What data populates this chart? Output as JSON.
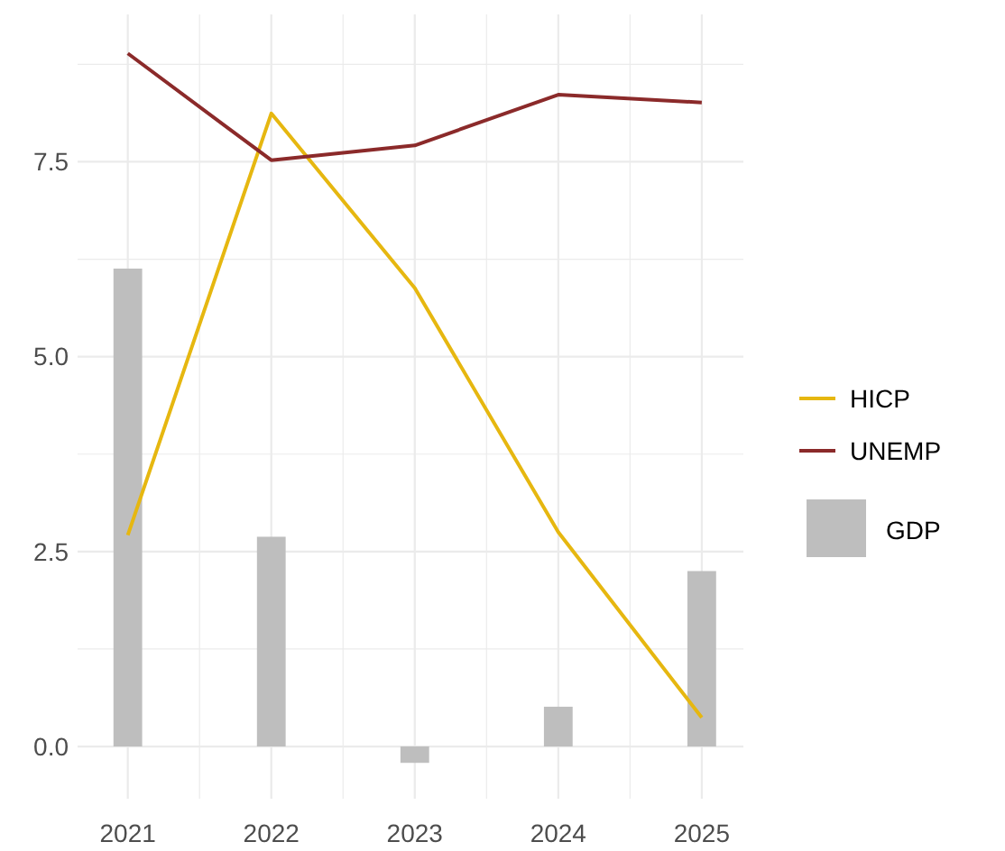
{
  "chart_data": {
    "type": "line",
    "x": [
      2021,
      2022,
      2023,
      2024,
      2025
    ],
    "series": [
      {
        "name": "HICP",
        "color": "#e6b710",
        "values": [
          2.71,
          8.12,
          5.88,
          2.75,
          0.37
        ]
      },
      {
        "name": "UNEMP",
        "color": "#8b2a2a",
        "values": [
          8.89,
          7.52,
          7.71,
          8.36,
          8.26
        ]
      },
      {
        "name": "GDP",
        "type": "bar",
        "color": "#bebebe",
        "values": [
          6.13,
          2.69,
          -0.21,
          0.51,
          2.25
        ]
      }
    ],
    "xlim": [
      2020.65,
      2025.29
    ],
    "xticks": [
      2021,
      {
        "value": 2021.5,
        "label": null
      },
      2022,
      {
        "value": 2022.5,
        "label": null
      },
      2023,
      {
        "value": 2023.5,
        "label": null
      },
      2024,
      {
        "value": 2024.5,
        "label": null
      },
      2025
    ],
    "ylim": [
      -0.67,
      9.39
    ],
    "yticks": [
      {
        "value": 0,
        "label": "0.0"
      },
      {
        "value": 1.25,
        "label": null
      },
      {
        "value": 2.5,
        "label": "2.5"
      },
      {
        "value": 3.75,
        "label": null
      },
      {
        "value": 5,
        "label": "5.0"
      },
      {
        "value": 6.25,
        "label": null
      },
      {
        "value": 7.5,
        "label": "7.5"
      },
      {
        "value": 8.75,
        "label": null
      }
    ],
    "grid": true,
    "legend": "right",
    "marker": "none",
    "line_style": "solid"
  }
}
